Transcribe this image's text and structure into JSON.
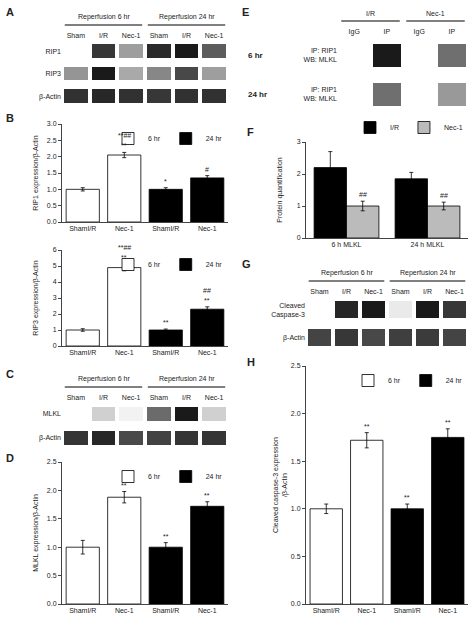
{
  "chart_data": [
    {
      "type": "heatmap",
      "title": "A",
      "groups": [
        {
          "name": "Reperfusion 6 hr",
          "categories": [
            "Sham",
            "I/R",
            "Nec-1"
          ]
        },
        {
          "name": "Reperfusion 24 hr",
          "categories": [
            "Sham",
            "I/R",
            "Nec-1"
          ]
        }
      ],
      "series": [
        {
          "name": "RIP1",
          "values": [
            0.08,
            0.78,
            0.42,
            0.82,
            0.88,
            0.65
          ]
        },
        {
          "name": "RIP3",
          "values": [
            0.45,
            0.88,
            0.38,
            0.5,
            0.72,
            0.42
          ]
        },
        {
          "name": "β-Actin",
          "values": [
            0.8,
            0.83,
            0.8,
            0.78,
            0.8,
            0.8
          ]
        }
      ]
    },
    {
      "type": "bar",
      "title": "B",
      "ylabel": "RIP1 expression/β-Actin",
      "categories": [
        "ShamI/R",
        "Nec-1",
        "ShamI/R",
        "Nec-1"
      ],
      "series": [
        {
          "name": "6 hr",
          "color": "#ffffff",
          "values": [
            1.0,
            2.05,
            null,
            null
          ],
          "errors": [
            0.05,
            0.08,
            null,
            null
          ],
          "annotations": [
            null,
            [
              "**",
              "**##"
            ],
            null,
            null
          ]
        },
        {
          "name": "24 hr",
          "color": "#000000",
          "values": [
            null,
            null,
            1.0,
            1.35
          ],
          "errors": [
            null,
            null,
            0.05,
            0.07
          ],
          "annotations": [
            null,
            null,
            [
              "*"
            ],
            [
              "#"
            ]
          ]
        }
      ],
      "ylim": [
        0,
        3.0
      ],
      "yticks": [
        {
          "value": 0,
          "label": "0.0"
        },
        0.5,
        {
          "value": 1,
          "label": "1.0"
        },
        1.5,
        {
          "value": 2,
          "label": "2.0"
        },
        2.5,
        {
          "value": 3,
          "label": "3.0"
        }
      ],
      "grid": false,
      "legend": "upper right"
    },
    {
      "type": "bar",
      "ylabel": "RIP3 expression/β-Actin",
      "categories": [
        "ShamI/R",
        "Nec-1",
        "ShamI/R",
        "Nec-1"
      ],
      "series": [
        {
          "name": "6 hr",
          "color": "#ffffff",
          "values": [
            1.0,
            4.9,
            null,
            null
          ],
          "errors": [
            0.08,
            0.2,
            null,
            null
          ],
          "annotations": [
            null,
            [
              "**",
              "**##"
            ],
            null,
            null
          ]
        },
        {
          "name": "24 hr",
          "color": "#000000",
          "values": [
            null,
            null,
            1.0,
            2.3
          ],
          "errors": [
            null,
            null,
            0.06,
            0.15
          ],
          "annotations": [
            null,
            null,
            [
              "**"
            ],
            [
              "**",
              "##"
            ]
          ]
        }
      ],
      "ylim": [
        0,
        6.0
      ],
      "yticks": [
        0,
        1,
        2,
        3,
        4,
        5,
        6
      ],
      "grid": false,
      "legend": "upper right"
    },
    {
      "type": "heatmap",
      "title": "C",
      "groups": [
        {
          "name": "Reperfusion 6 hr",
          "categories": [
            "Sham",
            "I/R",
            "Nec-1"
          ]
        },
        {
          "name": "Reperfusion 24 hr",
          "categories": [
            "Sham",
            "I/R",
            "Nec-1"
          ]
        }
      ],
      "series": [
        {
          "name": "MLKL",
          "values": [
            0.48,
            0.55,
            0.5,
            0.7,
            0.82,
            0.55
          ]
        },
        {
          "name": "β-Actin",
          "values": [
            0.78,
            0.8,
            0.75,
            0.76,
            0.78,
            0.78
          ]
        }
      ]
    },
    {
      "type": "bar",
      "title": "D",
      "ylabel": "MLKL expression/β-Actin",
      "categories": [
        "ShamI/R",
        "Nec-1",
        "ShamI/R",
        "Nec-1"
      ],
      "series": [
        {
          "name": "6 hr",
          "color": "#ffffff",
          "values": [
            1.0,
            1.88,
            null,
            null
          ],
          "errors": [
            0.12,
            0.1,
            null,
            null
          ],
          "annotations": [
            null,
            [
              "**"
            ],
            null,
            null
          ]
        },
        {
          "name": "24 hr",
          "color": "#000000",
          "values": [
            null,
            null,
            1.0,
            1.72
          ],
          "errors": [
            null,
            null,
            0.08,
            0.08
          ],
          "annotations": [
            null,
            null,
            [
              "**"
            ],
            [
              "**"
            ]
          ]
        }
      ],
      "ylim": [
        0,
        2.5
      ],
      "yticks": [
        {
          "value": 0,
          "label": "0.0"
        },
        0.5,
        {
          "value": 1,
          "label": "1.0"
        },
        1.5,
        {
          "value": 2,
          "label": "2.0"
        },
        2.5
      ],
      "grid": false,
      "legend": "upper right"
    },
    {
      "type": "heatmap",
      "title": "E",
      "groups": [
        {
          "name": "I/R",
          "categories": [
            "IgG",
            "IP"
          ]
        },
        {
          "name": "Nec-1",
          "categories": [
            "IgG",
            "IP"
          ]
        }
      ],
      "series": [
        {
          "name": "6 hr",
          "annotations": [
            "IP: RIP1",
            "WB: MLKL"
          ],
          "values": [
            0.04,
            0.85,
            0.04,
            0.55
          ]
        },
        {
          "name": "24 hr",
          "annotations": [
            "IP: RIP1",
            "WB: MLKL"
          ],
          "values": [
            0.04,
            0.55,
            0.04,
            0.4
          ]
        }
      ]
    },
    {
      "type": "bar",
      "title": "F",
      "ylabel": "Protein quantification",
      "categories": [
        "6 h MLKL",
        "24 h MLKL"
      ],
      "series": [
        {
          "name": "I/R",
          "color": "#000000",
          "values": [
            2.2,
            1.85
          ],
          "errors": [
            0.5,
            0.2
          ]
        },
        {
          "name": "Nec-1",
          "color": "#bbbbbb",
          "values": [
            1.0,
            1.0
          ],
          "errors": [
            0.15,
            0.12
          ],
          "annotations": [
            [
              "##"
            ],
            [
              "##"
            ]
          ]
        }
      ],
      "ylim": [
        0,
        3
      ],
      "yticks": [
        0,
        1,
        2,
        3
      ],
      "grid": false,
      "legend": "top"
    },
    {
      "type": "heatmap",
      "title": "G",
      "groups": [
        {
          "name": "Reperfusion 6 hr",
          "categories": [
            "Sham",
            "I/R",
            "Nec-1"
          ]
        },
        {
          "name": "Reperfusion 24 hr",
          "categories": [
            "Sham",
            "I/R",
            "Nec-1"
          ]
        }
      ],
      "series": [
        {
          "name": "Cleaved\nCaspase-3",
          "values": [
            0.3,
            0.82,
            0.85,
            0.35,
            0.85,
            0.78
          ]
        },
        {
          "name": "β-Actin",
          "values": [
            0.75,
            0.78,
            0.74,
            0.76,
            0.77,
            0.75
          ]
        }
      ]
    },
    {
      "type": "bar",
      "title": "H",
      "ylabel": "Cleaved caspase-3 expression\n/β-Actin",
      "categories": [
        "ShamI/R",
        "Nec-1",
        "ShamI/R",
        "Nec-1"
      ],
      "series": [
        {
          "name": "6 hr",
          "color": "#ffffff",
          "values": [
            1.0,
            1.72,
            null,
            null
          ],
          "errors": [
            0.05,
            0.08,
            null,
            null
          ],
          "annotations": [
            null,
            [
              "**"
            ],
            null,
            null
          ]
        },
        {
          "name": "24 hr",
          "color": "#000000",
          "values": [
            null,
            null,
            1.0,
            1.75
          ],
          "errors": [
            null,
            null,
            0.05,
            0.09
          ],
          "annotations": [
            null,
            null,
            [
              "**"
            ],
            [
              "**"
            ]
          ]
        }
      ],
      "ylim": [
        0,
        2.5
      ],
      "yticks": [
        {
          "value": 0,
          "label": "0.0"
        },
        0.5,
        {
          "value": 1,
          "label": "1.0"
        },
        1.5,
        {
          "value": 2,
          "label": "2.0"
        },
        2.5
      ],
      "grid": false,
      "legend": "upper right"
    }
  ]
}
